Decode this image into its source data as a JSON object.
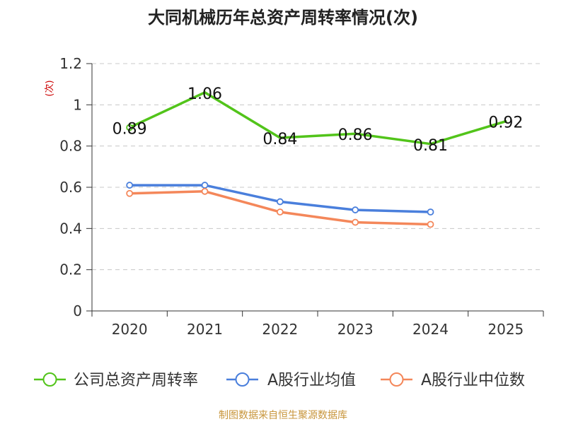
{
  "chart_data": {
    "type": "line",
    "title": "大同机械历年总资产周转率情况(次)",
    "ylabel": "(次)",
    "xlabel": "",
    "categories": [
      "2020",
      "2021",
      "2022",
      "2023",
      "2024",
      "2025"
    ],
    "ylim": [
      0,
      1.2
    ],
    "yticks": [
      "0",
      "0.2",
      "0.4",
      "0.6",
      "0.8",
      "1",
      "1.2"
    ],
    "grid": true,
    "legend_position": "bottom",
    "series": [
      {
        "name": "公司总资产周转率",
        "color": "#52c41a",
        "values": [
          0.89,
          1.06,
          0.84,
          0.86,
          0.81,
          0.92
        ],
        "labels": [
          "0.89",
          "1.06",
          "0.84",
          "0.86",
          "0.81",
          "0.92"
        ],
        "markers": [
          true,
          false,
          false,
          false,
          false,
          false
        ]
      },
      {
        "name": "A股行业均值",
        "color": "#4a7fdc",
        "values": [
          0.61,
          0.61,
          0.53,
          0.49,
          0.48,
          null
        ],
        "markers": [
          true,
          true,
          true,
          true,
          true,
          false
        ]
      },
      {
        "name": "A股行业中位数",
        "color": "#f4875a",
        "values": [
          0.57,
          0.58,
          0.48,
          0.43,
          0.42,
          null
        ],
        "markers": [
          true,
          true,
          true,
          true,
          true,
          false
        ]
      }
    ]
  },
  "footer": {
    "source": "制图数据来自恒生聚源数据库"
  }
}
